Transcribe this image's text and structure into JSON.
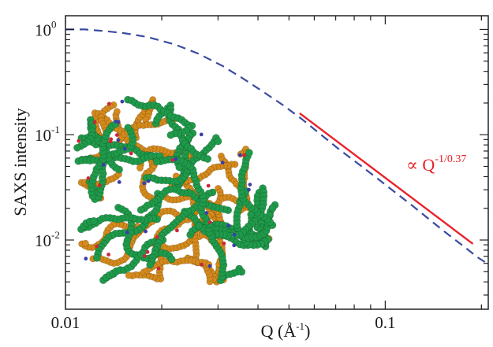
{
  "chart_data": {
    "type": "line",
    "xscale": "log",
    "yscale": "log",
    "xlim": [
      0.01,
      0.21
    ],
    "ylim": [
      0.0022,
      1.35
    ],
    "xlabel": "Q (Å",
    "xlabel_sup": "-1",
    "xlabel_close": ")",
    "ylabel": "SAXS intensity",
    "x_ticks": [
      {
        "value": 0.01,
        "label": "0.01"
      },
      {
        "value": 0.1,
        "label": "0.1"
      }
    ],
    "y_ticks": [
      {
        "value": 1,
        "base": "10",
        "exp": "0"
      },
      {
        "value": 0.1,
        "base": "10",
        "exp": "-1"
      },
      {
        "value": 0.01,
        "base": "10",
        "exp": "-2"
      }
    ],
    "series": [
      {
        "style": "dashed",
        "color": "#3a4ba0",
        "x": [
          0.01,
          0.0115,
          0.013,
          0.015,
          0.018,
          0.022,
          0.026,
          0.031,
          0.036,
          0.042,
          0.048,
          0.055,
          0.063,
          0.072,
          0.083,
          0.095,
          0.108,
          0.122,
          0.138,
          0.155,
          0.175,
          0.195,
          0.21
        ],
        "y": [
          1.0,
          1.0,
          0.97,
          0.93,
          0.85,
          0.72,
          0.59,
          0.45,
          0.34,
          0.25,
          0.19,
          0.14,
          0.1,
          0.072,
          0.052,
          0.038,
          0.028,
          0.021,
          0.0155,
          0.0117,
          0.0088,
          0.0068,
          0.0059
        ]
      },
      {
        "style": "solid",
        "color": "#e8232a",
        "x": [
          0.054,
          0.188
        ],
        "y": [
          0.16,
          0.0092
        ]
      }
    ],
    "annotation": {
      "text": "∝ Q",
      "sup": "-1/0.37",
      "color": "#e8232a",
      "x": 0.119,
      "y": 0.052
    },
    "inset_image": "protein-molecule-structure"
  }
}
